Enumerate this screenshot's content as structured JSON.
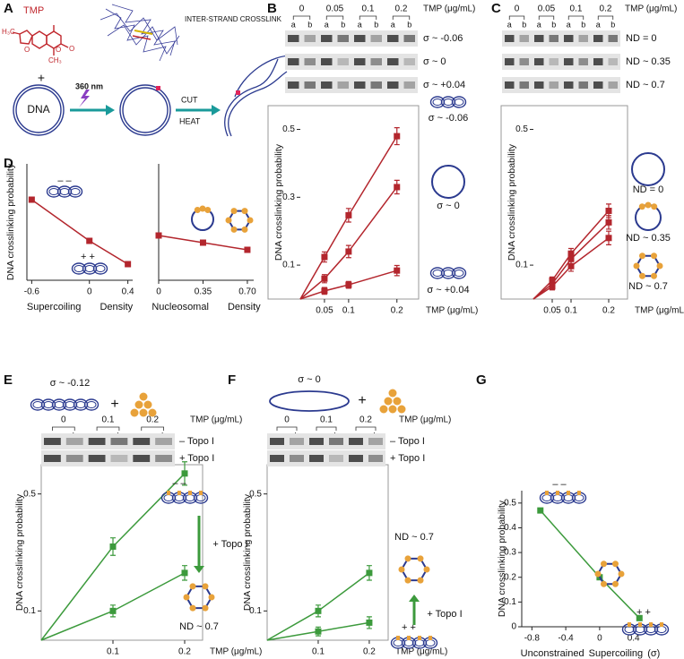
{
  "panel_a": {
    "label": "A",
    "molecule": "TMP",
    "atoms": [
      "H₃C",
      "O",
      "O",
      "O",
      "CH₃"
    ],
    "structure": "INTER-STRAND CROSSLINK",
    "plus": "+",
    "dna": "DNA",
    "light": "360 nm",
    "cut": "CUT",
    "heat": "HEAT"
  },
  "chart_data": [
    {
      "type": "line",
      "panel": "B",
      "xlabel": "TMP (μg/mL)",
      "ylabel": "DNA crosslinking probability",
      "x": [
        0.05,
        0.1,
        0.2
      ],
      "xlim": [
        0,
        0.245
      ],
      "xticks": [
        0.05,
        0.1,
        0.2
      ],
      "ylim": [
        0,
        0.57
      ],
      "yticks": [
        0.1,
        0.3,
        0.5
      ],
      "through_origin": true,
      "series": [
        {
          "name": "σ ~ -0.06",
          "color": "#b3262d",
          "values": [
            0.124,
            0.247,
            0.48
          ],
          "errors": [
            0.015,
            0.02,
            0.025
          ]
        },
        {
          "name": "σ ~ 0",
          "color": "#b3262d",
          "values": [
            0.06,
            0.14,
            0.33
          ],
          "errors": [
            0.012,
            0.018,
            0.02
          ]
        },
        {
          "name": "σ ~ +0.04",
          "color": "#b3262d",
          "values": [
            0.024,
            0.042,
            0.084
          ],
          "errors": [
            0.01,
            0.01,
            0.015
          ]
        }
      ],
      "gel": {
        "concentrations": [
          0,
          0.05,
          0.1,
          0.2
        ],
        "unit": "TMP (μg/mL)",
        "lanes": [
          "a",
          "b"
        ]
      }
    },
    {
      "type": "line",
      "panel": "C",
      "xlabel": "TMP (μg/mL)",
      "ylabel": "DNA crosslinking probability",
      "x": [
        0.05,
        0.1,
        0.2
      ],
      "xlim": [
        0,
        0.25
      ],
      "xticks": [
        0.05,
        0.1,
        0.2
      ],
      "ylim": [
        0,
        0.57
      ],
      "yticks": [
        0.1,
        0.5
      ],
      "through_origin": true,
      "series": [
        {
          "name": "ND = 0",
          "color": "#b3262d",
          "values": [
            0.055,
            0.134,
            0.26
          ],
          "errors": [
            0.01,
            0.015,
            0.02
          ]
        },
        {
          "name": "ND ~ 0.35",
          "color": "#b3262d",
          "values": [
            0.045,
            0.118,
            0.226
          ],
          "errors": [
            0.01,
            0.015,
            0.02
          ]
        },
        {
          "name": "ND ~ 0.7",
          "color": "#b3262d",
          "values": [
            0.037,
            0.097,
            0.18
          ],
          "errors": [
            0.01,
            0.015,
            0.02
          ]
        }
      ],
      "gel": {
        "concentrations": [
          0,
          0.05,
          0.1,
          0.2
        ],
        "unit": "TMP (μg/mL)",
        "lanes": [
          "a",
          "b"
        ]
      }
    },
    {
      "type": "line",
      "panel": "D",
      "xlabel": "Supercoiling Density",
      "ylabel": "DNA crosslinking probability",
      "x": [
        -0.6,
        0,
        0.4
      ],
      "xlim": [
        -0.65,
        0.45
      ],
      "xticks": [
        -0.6,
        0,
        0.4
      ],
      "ylim": [
        0.04,
        0.69
      ],
      "series": [
        {
          "color": "#b3262d",
          "values": [
            0.49,
            0.26,
            0.13
          ]
        }
      ],
      "annotations": [
        "– –",
        "+ +"
      ]
    },
    {
      "type": "line",
      "xlabel": "Nucleosomal Density",
      "x": [
        0,
        0.35,
        0.7
      ],
      "xlim": [
        0,
        0.75
      ],
      "xticks": [
        0,
        0.35,
        {
          "value": 0.7,
          "label": "0.70"
        }
      ],
      "ylim": [
        0.04,
        0.69
      ],
      "series": [
        {
          "color": "#b3262d",
          "values": [
            0.29,
            0.25,
            0.21
          ]
        }
      ]
    },
    {
      "type": "line",
      "panel": "E",
      "title": "σ ~ -0.12",
      "plus": "+",
      "xlabel": "TMP (μg/mL)",
      "ylabel": "DNA crosslinking probability",
      "x": [
        0.1,
        0.2
      ],
      "xlim": [
        0,
        0.225
      ],
      "xticks": [
        0.1,
        0.2
      ],
      "ylim": [
        0,
        0.6
      ],
      "yticks": [
        0.1,
        0.5
      ],
      "through_origin": true,
      "series": [
        {
          "color": "#3c9a3c",
          "values": [
            0.32,
            0.57
          ],
          "errors": [
            0.03,
            0.04
          ]
        },
        {
          "color": "#3c9a3c",
          "values": [
            0.1,
            0.23
          ],
          "errors": [
            0.02,
            0.025
          ]
        }
      ],
      "gel": {
        "concentrations": [
          0,
          0.1,
          0.2
        ],
        "unit": "TMP (μg/mL)",
        "lanes": [
          "a",
          "b"
        ],
        "rows": [
          "– Topo I",
          "+ Topo I"
        ]
      },
      "annotations": [
        "– –",
        "+ Topo I",
        "ND ~ 0.7"
      ]
    },
    {
      "type": "line",
      "panel": "F",
      "title": "σ ~ 0",
      "plus": "+",
      "xlabel": "TMP (μg/mL)",
      "ylabel": "DNA crosslinking probability",
      "x": [
        0.1,
        0.2
      ],
      "xlim": [
        0,
        0.237
      ],
      "xticks": [
        0.1,
        0.2
      ],
      "ylim": [
        0,
        0.6
      ],
      "yticks": [
        0.1,
        0.5
      ],
      "through_origin": true,
      "series": [
        {
          "color": "#3c9a3c",
          "values": [
            0.1,
            0.23
          ],
          "errors": [
            0.02,
            0.025
          ]
        },
        {
          "color": "#3c9a3c",
          "values": [
            0.03,
            0.06
          ],
          "errors": [
            0.015,
            0.02
          ]
        }
      ],
      "gel": {
        "concentrations": [
          0,
          0.1,
          0.2
        ],
        "unit": "TMP (μg/mL)",
        "lanes": [
          "a",
          "b"
        ],
        "rows": [
          "– Topo I",
          "+ Topo I"
        ]
      },
      "annotations": [
        "ND ~ 0.7",
        "+ Topo I",
        "+ +"
      ]
    },
    {
      "type": "line",
      "panel": "G",
      "xlabel": "Unconstrained Supercoiling (σ)",
      "ylabel": "DNA crosslinking probability",
      "x": [
        -0.7,
        0,
        0.47
      ],
      "xlim": [
        -0.92,
        0.7
      ],
      "xticks": [
        -0.8,
        -0.4,
        0,
        0.4
      ],
      "ylim": [
        0,
        0.55
      ],
      "yticks": [
        0,
        0.1,
        0.2,
        0.3,
        0.4,
        0.5
      ],
      "series": [
        {
          "color": "#3c9a3c",
          "values": [
            0.47,
            0.2,
            0.035
          ]
        }
      ],
      "annotations": [
        "– –",
        "+ +"
      ]
    }
  ]
}
